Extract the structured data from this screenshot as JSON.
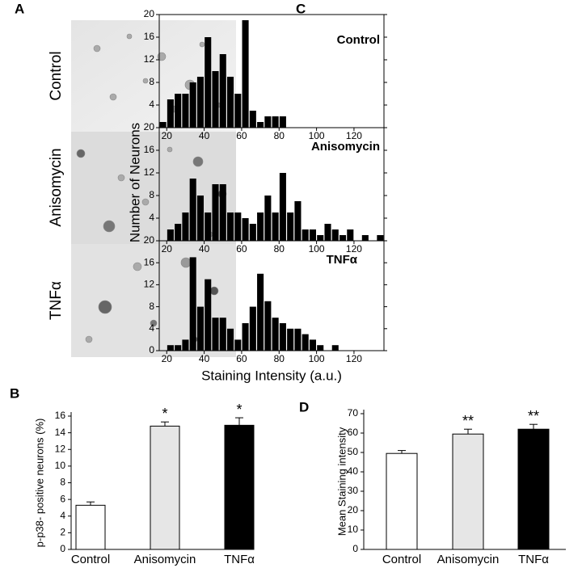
{
  "panel_labels": [
    "A",
    "B",
    "C",
    "D"
  ],
  "image_labels": [
    "Control",
    "Anisomycin",
    "TNFα"
  ],
  "histogram_axes": {
    "ylabel": "Number of Neurons",
    "xlabel": "Staining Intensity (a.u.)"
  },
  "chart_data": [
    {
      "type": "bar",
      "ylabel": "p-p38- positive neurons (%)",
      "categories": [
        "Control",
        "Anisomycin",
        "TNFα"
      ],
      "values": [
        5.3,
        14.8,
        14.9
      ],
      "errors": [
        0.4,
        0.5,
        0.9
      ],
      "colors": [
        "#ffffff",
        "#e6e6e6",
        "#000000"
      ],
      "significance": [
        null,
        "*",
        "*"
      ],
      "ylim": [
        0,
        16
      ],
      "yticks": [
        0,
        2,
        4,
        6,
        8,
        10,
        12,
        14,
        16
      ]
    },
    {
      "type": "histogram",
      "title": "Control",
      "bins": [
        16,
        20,
        24,
        28,
        32,
        36,
        40,
        44,
        48,
        52,
        56,
        60,
        64,
        68,
        72,
        76,
        80,
        84
      ],
      "values": [
        1,
        5,
        6,
        6,
        8,
        9,
        16,
        10,
        13,
        9,
        6,
        19,
        3,
        1,
        2,
        2,
        2
      ],
      "color": "#000000",
      "xlim": [
        16,
        136
      ],
      "xticks": [
        20,
        40,
        60,
        80,
        100,
        120
      ],
      "ylim": [
        0,
        20
      ],
      "yticks": [
        4,
        8,
        12,
        16,
        20
      ]
    },
    {
      "type": "histogram",
      "title": "Anisomycin",
      "bins": [
        20,
        24,
        28,
        32,
        36,
        40,
        44,
        48,
        52,
        56,
        60,
        64,
        68,
        72,
        76,
        80,
        84,
        88,
        92,
        96,
        100,
        104,
        108,
        112,
        116,
        120,
        124,
        128,
        132,
        136
      ],
      "values": [
        2,
        3,
        5,
        11,
        8,
        5,
        10,
        10,
        5,
        5,
        4,
        3,
        5,
        8,
        5,
        12,
        5,
        7,
        2,
        2,
        1,
        3,
        2,
        1,
        2,
        0,
        1,
        0,
        1
      ],
      "color": "#000000",
      "xlim": [
        16,
        136
      ],
      "xticks": [
        20,
        40,
        60,
        80,
        100,
        120
      ],
      "ylim": [
        0,
        20
      ],
      "yticks": [
        4,
        8,
        12,
        16,
        20
      ]
    },
    {
      "type": "histogram",
      "title": "TNFα",
      "bins": [
        20,
        24,
        28,
        32,
        36,
        40,
        44,
        48,
        52,
        56,
        60,
        64,
        68,
        72,
        76,
        80,
        84,
        88,
        92,
        96,
        100,
        104,
        108,
        112
      ],
      "values": [
        1,
        1,
        2,
        17,
        8,
        13,
        6,
        6,
        4,
        2,
        5,
        8,
        14,
        9,
        6,
        5,
        4,
        4,
        3,
        2,
        1,
        0,
        1
      ],
      "color": "#000000",
      "xlim": [
        16,
        136
      ],
      "xticks": [
        20,
        40,
        60,
        80,
        100,
        120
      ],
      "ylim": [
        0,
        20
      ],
      "yticks": [
        0,
        4,
        8,
        12,
        16,
        20
      ]
    },
    {
      "type": "bar",
      "ylabel": "Mean Staining intensity",
      "categories": [
        "Control",
        "Anisomycin",
        "TNFα"
      ],
      "values": [
        49.5,
        59.5,
        62
      ],
      "errors": [
        1.5,
        2.5,
        2.5
      ],
      "colors": [
        "#ffffff",
        "#e6e6e6",
        "#000000"
      ],
      "significance": [
        null,
        "**",
        "**"
      ],
      "ylim": [
        0,
        70
      ],
      "yticks": [
        0,
        10,
        20,
        30,
        40,
        50,
        60,
        70
      ]
    }
  ]
}
